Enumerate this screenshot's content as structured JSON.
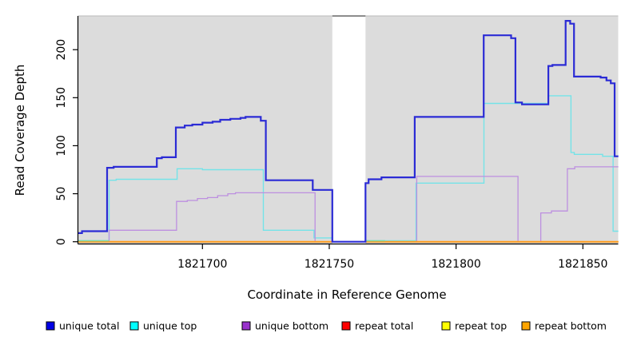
{
  "chart_data": {
    "type": "line",
    "subtype": "step",
    "title": "",
    "xlabel": "Coordinate in Reference Genome",
    "ylabel": "Read Coverage Depth",
    "xlim": [
      1821651,
      1821864
    ],
    "ylim": [
      0,
      235
    ],
    "x_ticks": [
      1821700,
      1821750,
      1821800,
      1821850
    ],
    "x_tick_labels": [
      "1821700",
      "1821750",
      "1821800",
      "1821850"
    ],
    "y_ticks": [
      0,
      50,
      100,
      150,
      200
    ],
    "y_tick_labels": [
      "0",
      "50",
      "100",
      "150",
      "200"
    ],
    "grid": false,
    "panel_bg": "#dcdcdc",
    "panel_border_top_color": "#c2c2c2",
    "legend_position": "bottom",
    "gap_region": {
      "x1": 1821751.2,
      "x2": 1821764.3,
      "fill": "#ffffff",
      "top_edge_color": "#8c8c8c",
      "note": "white column with no panel background; only unique-total line at 0 crosses it"
    },
    "series": [
      {
        "name": "unique total",
        "color": "#2b2bd5",
        "legend_color": "#0000e6",
        "width": 2.2,
        "steps": [
          [
            1821651,
            9
          ],
          [
            1821652.5,
            11
          ],
          [
            1821662.4,
            77
          ],
          [
            1821665,
            78
          ],
          [
            1821682,
            87
          ],
          [
            1821684,
            88
          ],
          [
            1821689.5,
            119
          ],
          [
            1821693,
            121
          ],
          [
            1821696,
            122
          ],
          [
            1821700,
            124
          ],
          [
            1821704,
            125
          ],
          [
            1821707,
            127
          ],
          [
            1821711,
            128
          ],
          [
            1821715,
            129
          ],
          [
            1821717,
            130
          ],
          [
            1821723,
            126
          ],
          [
            1821725,
            64
          ],
          [
            1821743.5,
            54
          ],
          [
            1821751.2,
            0
          ],
          [
            1821764.3,
            61
          ],
          [
            1821765.5,
            65
          ],
          [
            1821770.6,
            67
          ],
          [
            1821783.7,
            130
          ],
          [
            1821810.9,
            215
          ],
          [
            1821821.7,
            212
          ],
          [
            1821823.4,
            145
          ],
          [
            1821826,
            143
          ],
          [
            1821836.4,
            183
          ],
          [
            1821838,
            184
          ],
          [
            1821843.2,
            230
          ],
          [
            1821845,
            227
          ],
          [
            1821846.5,
            172
          ],
          [
            1821857,
            171
          ],
          [
            1821859.3,
            168
          ],
          [
            1821861,
            165
          ],
          [
            1821862.5,
            89
          ]
        ]
      },
      {
        "name": "unique top",
        "color": "#74e3e8",
        "legend_color": "#00ffff",
        "width": 1.4,
        "steps": [
          [
            1821651,
            1
          ],
          [
            1821663.2,
            64
          ],
          [
            1821666,
            65
          ],
          [
            1821690,
            76
          ],
          [
            1821700,
            75
          ],
          [
            1821724,
            12
          ],
          [
            1821744,
            4
          ],
          [
            1821751.2,
            0
          ],
          [
            1821764.4,
            1
          ],
          [
            1821784.2,
            61
          ],
          [
            1821811,
            144
          ],
          [
            1821836.4,
            152
          ],
          [
            1821845.3,
            93
          ],
          [
            1821846.6,
            91
          ],
          [
            1821857.8,
            89
          ],
          [
            1821861.9,
            11
          ]
        ]
      },
      {
        "name": "unique bottom",
        "color": "#bd8fe0",
        "legend_color": "#9932cc",
        "width": 1.3,
        "steps": [
          [
            1821651,
            0
          ],
          [
            1821663.2,
            12
          ],
          [
            1821689.8,
            42
          ],
          [
            1821694,
            43
          ],
          [
            1821698,
            45
          ],
          [
            1821702,
            46
          ],
          [
            1821706,
            48
          ],
          [
            1821710,
            50
          ],
          [
            1821713,
            51
          ],
          [
            1821744.4,
            0
          ],
          [
            1821784.5,
            68
          ],
          [
            1821824.4,
            0
          ],
          [
            1821833.4,
            30
          ],
          [
            1821837.6,
            32
          ],
          [
            1821843.9,
            76
          ],
          [
            1821846.8,
            78
          ]
        ]
      },
      {
        "name": "repeat total",
        "color": "#ff0000",
        "legend_color": "#ff0000",
        "width": 1,
        "steps": [
          [
            1821651,
            0
          ]
        ]
      },
      {
        "name": "repeat top",
        "color": "#ffff00",
        "legend_color": "#ffff00",
        "width": 1,
        "steps": [
          [
            1821651,
            0
          ]
        ]
      },
      {
        "name": "repeat bottom",
        "color": "#ff9c1c",
        "legend_color": "#ffa500",
        "width": 2,
        "steps": [
          [
            1821651,
            0
          ]
        ]
      }
    ],
    "blend_segments": [
      {
        "x1": 1821651,
        "x2": 1821663.2,
        "value": 1,
        "color": "#7fd8a4"
      },
      {
        "x1": 1821764.4,
        "x2": 1821772,
        "value": 1,
        "color": "#7fd8a4"
      }
    ]
  }
}
